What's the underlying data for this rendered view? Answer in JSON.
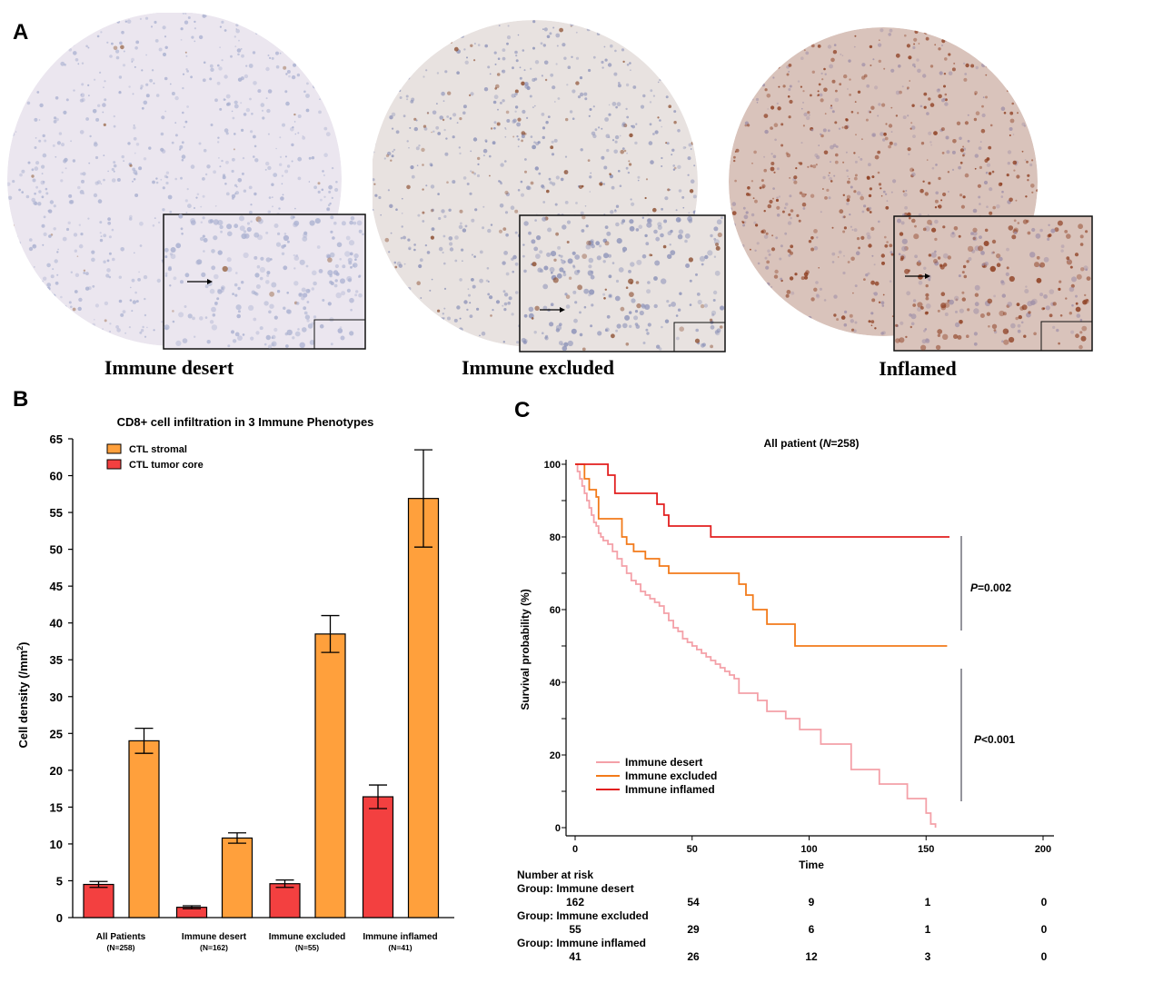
{
  "panel_a": {
    "letter": "A",
    "phenotypes": [
      {
        "label": "Immune desert",
        "colors": {
          "base": "#ebe6ef",
          "stain": "#a9b0d0",
          "brown": "#9a6a4a"
        },
        "brown_density": 0.02
      },
      {
        "label": "Immune excluded",
        "colors": {
          "base": "#e8e2e0",
          "stain": "#8c92b8",
          "brown": "#8a4b2c"
        },
        "brown_density": 0.15
      },
      {
        "label": "Inflamed",
        "colors": {
          "base": "#d9c3bb",
          "stain": "#a090a8",
          "brown": "#8b3a1c"
        },
        "brown_density": 0.55
      }
    ]
  },
  "panel_b": {
    "letter": "B",
    "chart_data": {
      "type": "bar",
      "title": "CD8+ cell infiltration in 3 Immune Phenotypes",
      "ylabel": "Cell density (/mm",
      "ylabel_sup": "2",
      "ylabel_close": ")",
      "ylim": [
        0,
        65
      ],
      "yticks": [
        0,
        5,
        10,
        15,
        20,
        25,
        30,
        35,
        40,
        45,
        50,
        55,
        60,
        65
      ],
      "categories": [
        {
          "name": "All Patients",
          "n": "(N=258)"
        },
        {
          "name": "Immune desert",
          "n": "(N=162)"
        },
        {
          "name": "Immune excluded",
          "n": "(N=55)"
        },
        {
          "name": "Immune inflamed",
          "n": "(N=41)"
        }
      ],
      "legend_position": "top-left",
      "series": [
        {
          "name": "CTL tumor core",
          "color": "#f34040",
          "values": [
            4.5,
            1.4,
            4.6,
            16.4
          ],
          "errors": [
            0.4,
            0.2,
            0.5,
            1.6
          ]
        },
        {
          "name": "CTL stromal",
          "color": "#ffa03c",
          "values": [
            24.0,
            10.8,
            38.5,
            56.9
          ],
          "errors": [
            1.7,
            0.7,
            2.5,
            6.6
          ]
        }
      ],
      "legend_order": [
        "CTL stromal",
        "CTL tumor core"
      ]
    }
  },
  "panel_c": {
    "letter": "C",
    "chart_data": {
      "type": "line",
      "title": "All patient (",
      "title_n": "N",
      "title_rest": "=258)",
      "xlabel": "Time",
      "ylabel": "Survival probability (%)",
      "xlim": [
        0,
        200
      ],
      "ylim": [
        0,
        100
      ],
      "xticks": [
        0,
        50,
        100,
        150,
        200
      ],
      "yticks": [
        0,
        20,
        40,
        60,
        80,
        100
      ],
      "legend_position": "bottom-left",
      "series": [
        {
          "name": "Immune desert",
          "color": "#f4a0a8",
          "x": [
            0,
            1,
            2,
            3,
            4,
            5,
            6,
            7,
            8,
            9,
            10,
            11,
            12,
            14,
            16,
            18,
            20,
            22,
            24,
            26,
            28,
            30,
            32,
            34,
            36,
            38,
            40,
            42,
            44,
            46,
            48,
            50,
            52,
            54,
            56,
            58,
            60,
            62,
            64,
            66,
            68,
            70,
            74,
            78,
            82,
            90,
            96,
            105,
            118,
            130,
            142,
            150,
            152,
            154
          ],
          "y": [
            100,
            98,
            96,
            94,
            92,
            90,
            88,
            86,
            84,
            83,
            81,
            80,
            79,
            78,
            76,
            74,
            72,
            70,
            68,
            67,
            65,
            64,
            63,
            62,
            61,
            59,
            57,
            55,
            54,
            52,
            51,
            50,
            49,
            48,
            47,
            46,
            45,
            44,
            43,
            42,
            41,
            37,
            37,
            35,
            32,
            30,
            27,
            23,
            16,
            12,
            8,
            4,
            1,
            0
          ]
        },
        {
          "name": "Immune excluded",
          "color": "#f27a1a",
          "x": [
            0,
            4,
            6,
            9,
            10,
            20,
            22,
            25,
            30,
            32,
            36,
            40,
            42,
            70,
            73,
            76,
            78,
            82,
            84,
            94,
            159
          ],
          "y": [
            100,
            96,
            93,
            91,
            85,
            80,
            78,
            76,
            74,
            74,
            72,
            70,
            70,
            67,
            64,
            60,
            60,
            56,
            56,
            50,
            50
          ]
        },
        {
          "name": "Immune inflamed",
          "color": "#e21f1f",
          "x": [
            0,
            10,
            14,
            17,
            30,
            35,
            38,
            40,
            42,
            58,
            160
          ],
          "y": [
            100,
            100,
            97,
            92,
            92,
            89,
            86,
            83,
            83,
            80,
            80
          ]
        }
      ],
      "annotations": [
        {
          "p": "P",
          "text": "=0.002"
        },
        {
          "p": "P",
          "text": "<0.001"
        }
      ]
    },
    "risk_table": {
      "title": "Number at risk",
      "groups": [
        {
          "label": "Group: Immune desert",
          "counts": [
            "162",
            "54",
            "9",
            "1",
            "0"
          ]
        },
        {
          "label": "Group: Immune excluded",
          "counts": [
            "55",
            "29",
            "6",
            "1",
            "0"
          ]
        },
        {
          "label": "Group: Immune inflamed",
          "counts": [
            "41",
            "26",
            "12",
            "3",
            "0"
          ]
        }
      ]
    }
  }
}
